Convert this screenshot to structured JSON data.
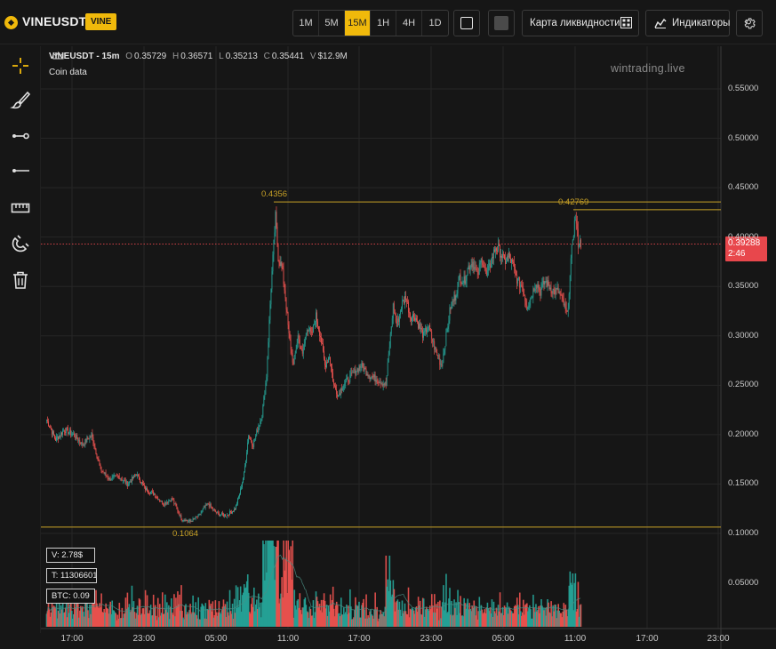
{
  "header": {
    "symbol": "VINEUSDT",
    "badge": "VINE",
    "timeframes": [
      "1M",
      "5M",
      "15M",
      "1H",
      "4H",
      "1D"
    ],
    "active_timeframe": "15M",
    "liquidity_map_label": "Карта ликвидности",
    "indicators_label": "Индикаторы"
  },
  "legend": {
    "title": "VINEUSDT - 15m",
    "o_key": "O",
    "o_value": "0.35729",
    "h_key": "H",
    "h_value": "0.36571",
    "l_key": "L",
    "l_value": "0.35213",
    "c_key": "C",
    "c_value": "0.35441",
    "v_key": "V",
    "v_value": "$12.9M",
    "coin_data": "Coin data"
  },
  "watermark": "wintrading.live",
  "current_price": {
    "value": "0.39288",
    "countdown": "2:46"
  },
  "info_boxes": [
    "V: 2.78$",
    "T: 11306601",
    "BTC: 0.09"
  ],
  "colors": {
    "background": "#161616",
    "up": "#26a69a",
    "down": "#ef5350",
    "accent": "#f0b90b",
    "level_line": "#c9a227",
    "price_tag": "#e8474c"
  },
  "icons": {
    "left_tools": [
      "crosshair-icon",
      "brush-icon",
      "ray-icon",
      "horizontal-line-icon",
      "ruler-icon",
      "magnet-icon",
      "trash-icon"
    ],
    "top": [
      "chart-square-icon",
      "filled-square-icon",
      "grid-icon",
      "indicators-icon",
      "gear-icon",
      "crown-icon"
    ]
  },
  "chart_data": {
    "type": "candlestick",
    "title": "VINEUSDT - 15m",
    "ylim": [
      0.07,
      0.58
    ],
    "y_ticks": [
      "0.55000",
      "0.50000",
      "0.45000",
      "0.40000",
      "0.35000",
      "0.30000",
      "0.25000",
      "0.20000",
      "0.15000",
      "0.10000"
    ],
    "volume_ticks": [
      "0.05000"
    ],
    "x_ticks": [
      "17:00",
      "23:00",
      "05:00",
      "11:00",
      "17:00",
      "23:00",
      "05:00",
      "11:00",
      "17:00",
      "23:00"
    ],
    "levels": [
      {
        "label": "0.4356",
        "price": 0.4356
      },
      {
        "label": "0.42769",
        "price": 0.42769
      },
      {
        "label": "0.1064",
        "price": 0.1064
      }
    ],
    "current_price": 0.39288,
    "close_path": [
      [
        0,
        0.215
      ],
      [
        10,
        0.195
      ],
      [
        20,
        0.205
      ],
      [
        30,
        0.2
      ],
      [
        40,
        0.19
      ],
      [
        50,
        0.2
      ],
      [
        60,
        0.165
      ],
      [
        70,
        0.155
      ],
      [
        80,
        0.158
      ],
      [
        90,
        0.15
      ],
      [
        100,
        0.16
      ],
      [
        110,
        0.145
      ],
      [
        120,
        0.14
      ],
      [
        130,
        0.13
      ],
      [
        140,
        0.135
      ],
      [
        150,
        0.115
      ],
      [
        160,
        0.112
      ],
      [
        170,
        0.118
      ],
      [
        175,
        0.125
      ],
      [
        180,
        0.13
      ],
      [
        185,
        0.125
      ],
      [
        190,
        0.12
      ],
      [
        200,
        0.118
      ],
      [
        210,
        0.125
      ],
      [
        215,
        0.14
      ],
      [
        220,
        0.16
      ],
      [
        225,
        0.2
      ],
      [
        230,
        0.19
      ],
      [
        240,
        0.22
      ],
      [
        245,
        0.26
      ],
      [
        250,
        0.35
      ],
      [
        255,
        0.42
      ],
      [
        258,
        0.38
      ],
      [
        262,
        0.37
      ],
      [
        266,
        0.34
      ],
      [
        270,
        0.3
      ],
      [
        275,
        0.27
      ],
      [
        280,
        0.3
      ],
      [
        285,
        0.28
      ],
      [
        290,
        0.31
      ],
      [
        295,
        0.3
      ],
      [
        300,
        0.32
      ],
      [
        305,
        0.3
      ],
      [
        310,
        0.27
      ],
      [
        315,
        0.28
      ],
      [
        320,
        0.25
      ],
      [
        325,
        0.24
      ],
      [
        330,
        0.25
      ],
      [
        340,
        0.26
      ],
      [
        350,
        0.27
      ],
      [
        360,
        0.26
      ],
      [
        370,
        0.255
      ],
      [
        378,
        0.25
      ],
      [
        382,
        0.29
      ],
      [
        386,
        0.33
      ],
      [
        390,
        0.31
      ],
      [
        395,
        0.33
      ],
      [
        400,
        0.34
      ],
      [
        405,
        0.32
      ],
      [
        410,
        0.32
      ],
      [
        415,
        0.31
      ],
      [
        420,
        0.3
      ],
      [
        425,
        0.31
      ],
      [
        430,
        0.295
      ],
      [
        435,
        0.28
      ],
      [
        440,
        0.27
      ],
      [
        445,
        0.3
      ],
      [
        450,
        0.33
      ],
      [
        455,
        0.34
      ],
      [
        460,
        0.36
      ],
      [
        465,
        0.355
      ],
      [
        470,
        0.37
      ],
      [
        475,
        0.375
      ],
      [
        480,
        0.36
      ],
      [
        485,
        0.38
      ],
      [
        490,
        0.36
      ],
      [
        495,
        0.375
      ],
      [
        500,
        0.39
      ],
      [
        505,
        0.385
      ],
      [
        510,
        0.375
      ],
      [
        515,
        0.38
      ],
      [
        520,
        0.37
      ],
      [
        525,
        0.355
      ],
      [
        530,
        0.35
      ],
      [
        535,
        0.33
      ],
      [
        540,
        0.34
      ],
      [
        545,
        0.355
      ],
      [
        550,
        0.345
      ],
      [
        555,
        0.355
      ],
      [
        560,
        0.35
      ],
      [
        565,
        0.345
      ],
      [
        570,
        0.345
      ],
      [
        575,
        0.335
      ],
      [
        580,
        0.32
      ],
      [
        583,
        0.36
      ],
      [
        586,
        0.4
      ],
      [
        589,
        0.42
      ],
      [
        592,
        0.395
      ],
      [
        595,
        0.393
      ]
    ]
  }
}
